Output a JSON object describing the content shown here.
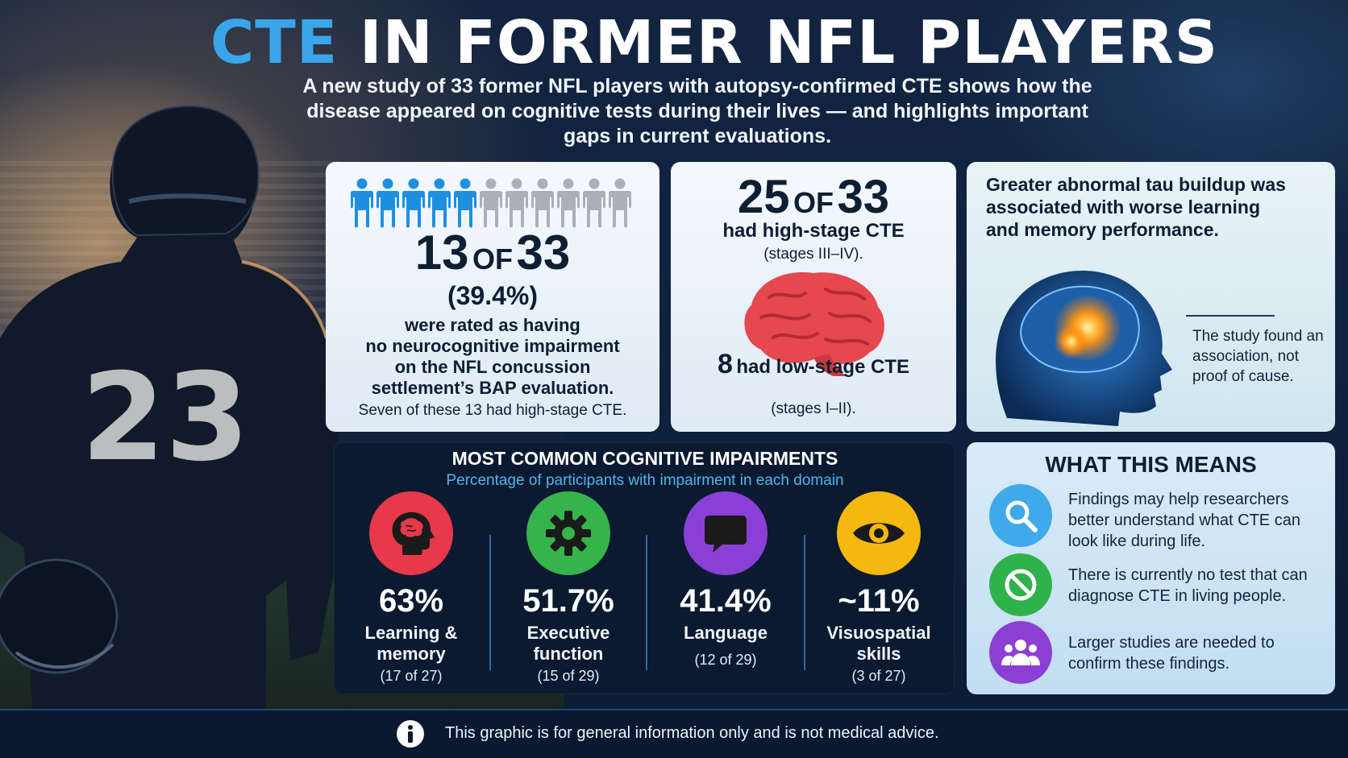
{
  "header": {
    "title_accent": "CTE",
    "title_rest": "IN FORMER NFL PLAYERS",
    "subtitle": "A new study of 33 former NFL players with autopsy-confirmed CTE shows how the disease appeared on cognitive tests during their lives — and highlights important gaps in current evaluations."
  },
  "player": {
    "jersey_number": "23"
  },
  "card_no_impairment": {
    "people_total": 33,
    "people_highlighted": 13,
    "people_icons_shown": 11,
    "people_icons_highlighted": 5,
    "stat_num": "13",
    "stat_of": "OF",
    "stat_den": "33",
    "percent": "(39.4%)",
    "desc_lines": [
      "were rated as having",
      "no neurocognitive impairment",
      "on the NFL concussion",
      "settlement’s BAP evaluation."
    ],
    "note": "Seven of these 13 had high-stage CTE."
  },
  "card_stages": {
    "high_num": "25",
    "high_of": "OF",
    "high_den": "33",
    "high_text": "had high-stage CTE",
    "high_stages": "(stages III–IV).",
    "low_num": "8",
    "low_text": "had low-stage CTE",
    "low_stages": "(stages I–II)."
  },
  "card_tau": {
    "heading": "Greater abnormal tau buildup was associated with worse learning and memory performance.",
    "note": "The study found an association, not proof of cause."
  },
  "impairments": {
    "title": "MOST COMMON COGNITIVE IMPAIRMENTS",
    "subtitle": "Percentage of participants with impairment in each domain",
    "domains": [
      {
        "pct": "63%",
        "label": "Learning & memory",
        "count": "(17 of 27)",
        "color": "#e8394a",
        "icon": "brain-head-icon"
      },
      {
        "pct": "51.7%",
        "label": "Executive function",
        "count": "(15 of 29)",
        "color": "#34b44a",
        "icon": "gear-icon"
      },
      {
        "pct": "41.4%",
        "label": "Language",
        "count": "(12 of 29)",
        "color": "#8b3fd6",
        "icon": "speech-bubble-icon"
      },
      {
        "pct": "~11%",
        "label": "Visuospatial skills",
        "count": "(3 of 27)",
        "color": "#f5b80e",
        "icon": "eye-icon"
      }
    ]
  },
  "means": {
    "title": "WHAT THIS MEANS",
    "items": [
      {
        "text": "Findings may help researchers better understand what CTE can look like during life.",
        "color": "#3fa9ea",
        "icon": "magnifier-icon"
      },
      {
        "text": "There is currently no test that can diagnose CTE in living people.",
        "color": "#2fb24b",
        "icon": "prohibited-icon"
      },
      {
        "text": "Larger studies are needed to confirm these findings.",
        "color": "#8c3fd4",
        "icon": "group-icon"
      }
    ]
  },
  "footer": {
    "text": "This graphic is for general information only and is not medical advice.",
    "icon": "info-icon"
  }
}
